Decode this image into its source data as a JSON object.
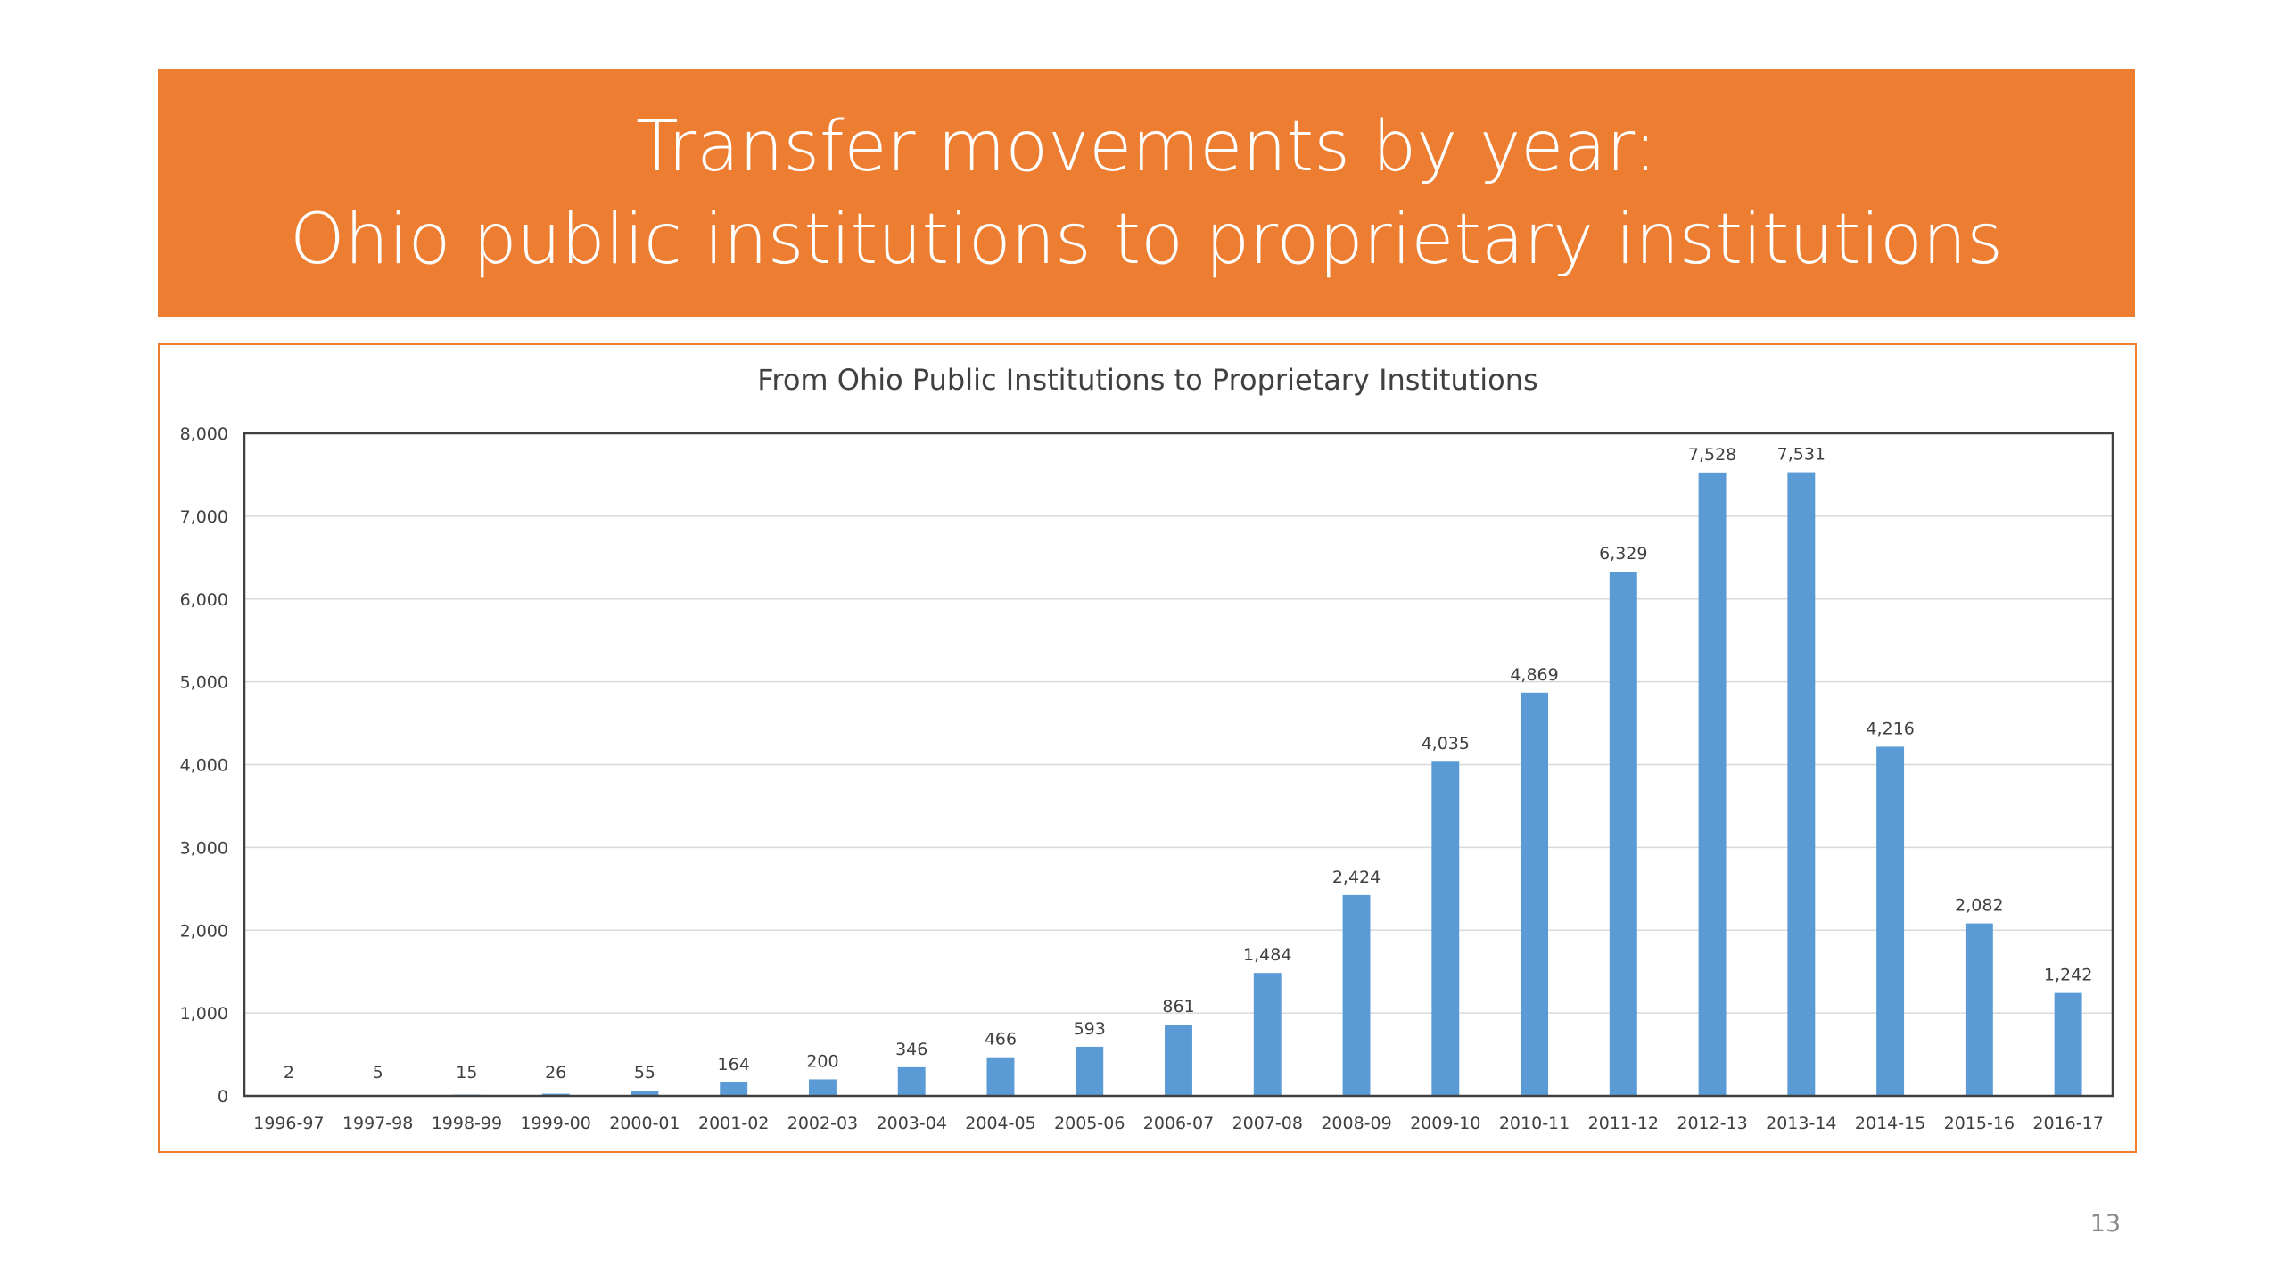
{
  "slide": {
    "title_line1": "Transfer movements by year:",
    "title_line2": "Ohio public institutions to proprietary institutions",
    "page_number": "13",
    "colors": {
      "banner": "#ED7D31",
      "frame": "#ED7D31",
      "bar": "#5B9BD5"
    }
  },
  "chart_data": {
    "type": "bar",
    "title": "From Ohio Public Institutions to Proprietary Institutions",
    "xlabel": "",
    "ylabel": "",
    "categories": [
      "1996-97",
      "1997-98",
      "1998-99",
      "1999-00",
      "2000-01",
      "2001-02",
      "2002-03",
      "2003-04",
      "2004-05",
      "2005-06",
      "2006-07",
      "2007-08",
      "2008-09",
      "2009-10",
      "2010-11",
      "2011-12",
      "2012-13",
      "2013-14",
      "2014-15",
      "2015-16",
      "2016-17"
    ],
    "values": [
      2,
      5,
      15,
      26,
      55,
      164,
      200,
      346,
      466,
      593,
      861,
      1484,
      2424,
      4035,
      4869,
      6329,
      7528,
      7531,
      4216,
      2082,
      1242
    ],
    "value_labels": [
      "2",
      "5",
      "15",
      "26",
      "55",
      "164",
      "200",
      "346",
      "466",
      "593",
      "861",
      "1,484",
      "2,424",
      "4,035",
      "4,869",
      "6,329",
      "7,528",
      "7,531",
      "4,216",
      "2,082",
      "1,242"
    ],
    "ylim": [
      0,
      8000
    ],
    "y_ticks": [
      0,
      1000,
      2000,
      3000,
      4000,
      5000,
      6000,
      7000,
      8000
    ],
    "y_tick_labels": [
      "0",
      "1,000",
      "2,000",
      "3,000",
      "4,000",
      "5,000",
      "6,000",
      "7,000",
      "8,000"
    ],
    "grid": true,
    "legend": "none"
  }
}
